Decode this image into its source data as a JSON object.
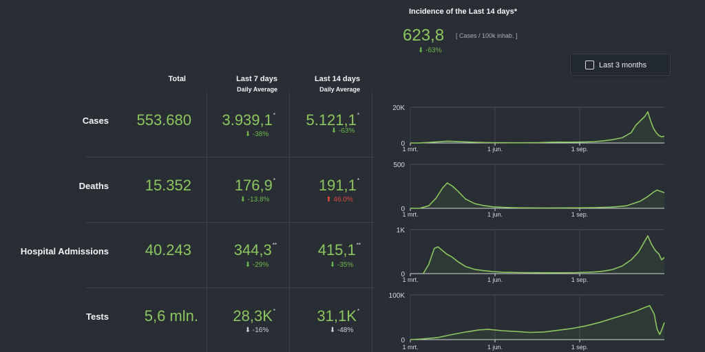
{
  "incidence": {
    "title": "Incidence of the Last 14 days*",
    "value": "623,8",
    "unit": "[ Cases / 100k inhab. ]",
    "change": "⬇ -63%"
  },
  "range_toggle": {
    "label": "Last 3 months",
    "checked": false
  },
  "columns": {
    "total": "Total",
    "last7": "Last 7 days",
    "last14": "Last 14 days",
    "daily_average": "Daily Average"
  },
  "rows": [
    {
      "label": "Cases",
      "total": "553.680",
      "avg7": "3.939,1",
      "avg7_mark": "*",
      "avg7_change": "⬇ -38%",
      "avg14": "5.121,1",
      "avg14_mark": "*",
      "avg14_change": "⬇ -63%"
    },
    {
      "label": "Deaths",
      "total": "15.352",
      "avg7": "176,9",
      "avg7_mark": "*",
      "avg7_change": "⬇ -13.8%",
      "avg14": "191,1",
      "avg14_mark": "*",
      "avg14_change": "⬆ 46.0%"
    },
    {
      "label": "Hospital Admissions",
      "total": "40.243",
      "avg7": "344,3",
      "avg7_mark": "**",
      "avg7_change": "⬇ -29%",
      "avg14": "415,1",
      "avg14_mark": "**",
      "avg14_change": "⬇ -35%"
    },
    {
      "label": "Tests",
      "total": "5,6 mln.",
      "avg7": "28,3K",
      "avg7_mark": "*",
      "avg7_change": "⬇ -16%",
      "avg14": "31,1K",
      "avg14_mark": "*",
      "avg14_change": "⬇ -48%"
    }
  ],
  "colors": {
    "accent": "#8dc65f",
    "down": "#6fb650",
    "up": "#e0473e",
    "neutral": "#cfd4d8",
    "background": "#282e34"
  },
  "chart_data": [
    {
      "type": "area",
      "name": "cases",
      "x_ticks": [
        "1 mrt.",
        "1 jun.",
        "1 sep."
      ],
      "y_ticks": [
        "20K",
        "0"
      ],
      "ylim": [
        0,
        24000
      ],
      "x_range_days": [
        0,
        276
      ],
      "points": [
        [
          0,
          0
        ],
        [
          10,
          60
        ],
        [
          20,
          350
        ],
        [
          30,
          800
        ],
        [
          40,
          1250
        ],
        [
          50,
          1000
        ],
        [
          60,
          750
        ],
        [
          70,
          500
        ],
        [
          80,
          300
        ],
        [
          90,
          220
        ],
        [
          100,
          180
        ],
        [
          110,
          150
        ],
        [
          120,
          130
        ],
        [
          130,
          170
        ],
        [
          140,
          280
        ],
        [
          150,
          520
        ],
        [
          160,
          600
        ],
        [
          170,
          560
        ],
        [
          180,
          600
        ],
        [
          190,
          750
        ],
        [
          200,
          900
        ],
        [
          210,
          1500
        ],
        [
          220,
          2300
        ],
        [
          230,
          3500
        ],
        [
          240,
          7000
        ],
        [
          245,
          12000
        ],
        [
          250,
          15000
        ],
        [
          255,
          18000
        ],
        [
          258,
          21000
        ],
        [
          261,
          15000
        ],
        [
          264,
          10000
        ],
        [
          267,
          7000
        ],
        [
          270,
          5000
        ],
        [
          273,
          4200
        ],
        [
          276,
          4500
        ]
      ]
    },
    {
      "type": "area",
      "name": "deaths",
      "x_ticks": [
        "1 mrt.",
        "1 jun.",
        "1 sep."
      ],
      "y_ticks": [
        "500",
        "0"
      ],
      "ylim": [
        0,
        520
      ],
      "x_range_days": [
        0,
        276
      ],
      "points": [
        [
          0,
          0
        ],
        [
          10,
          0
        ],
        [
          20,
          30
        ],
        [
          28,
          120
        ],
        [
          35,
          240
        ],
        [
          40,
          300
        ],
        [
          46,
          260
        ],
        [
          52,
          200
        ],
        [
          60,
          110
        ],
        [
          70,
          55
        ],
        [
          80,
          32
        ],
        [
          90,
          18
        ],
        [
          100,
          12
        ],
        [
          110,
          8
        ],
        [
          120,
          6
        ],
        [
          140,
          4
        ],
        [
          160,
          5
        ],
        [
          180,
          6
        ],
        [
          200,
          8
        ],
        [
          220,
          15
        ],
        [
          235,
          30
        ],
        [
          250,
          85
        ],
        [
          258,
          140
        ],
        [
          264,
          190
        ],
        [
          268,
          215
        ],
        [
          272,
          200
        ],
        [
          276,
          185
        ]
      ]
    },
    {
      "type": "area",
      "name": "hospital_admissions",
      "x_ticks": [
        "1 mrt.",
        "1 jun.",
        "1 sep."
      ],
      "y_ticks": [
        "1K",
        "0"
      ],
      "ylim": [
        0,
        1050
      ],
      "x_range_days": [
        14,
        276
      ],
      "points": [
        [
          14,
          0
        ],
        [
          20,
          220
        ],
        [
          26,
          600
        ],
        [
          30,
          640
        ],
        [
          35,
          550
        ],
        [
          40,
          460
        ],
        [
          45,
          400
        ],
        [
          52,
          280
        ],
        [
          60,
          170
        ],
        [
          70,
          100
        ],
        [
          80,
          70
        ],
        [
          90,
          50
        ],
        [
          100,
          35
        ],
        [
          120,
          25
        ],
        [
          140,
          22
        ],
        [
          160,
          20
        ],
        [
          180,
          25
        ],
        [
          200,
          40
        ],
        [
          210,
          60
        ],
        [
          220,
          100
        ],
        [
          230,
          180
        ],
        [
          240,
          330
        ],
        [
          248,
          520
        ],
        [
          254,
          750
        ],
        [
          258,
          900
        ],
        [
          262,
          700
        ],
        [
          266,
          560
        ],
        [
          270,
          470
        ],
        [
          273,
          330
        ],
        [
          276,
          390
        ]
      ]
    },
    {
      "type": "area",
      "name": "tests",
      "x_ticks": [
        "1 mrt.",
        "1 jun.",
        "1 sep."
      ],
      "y_ticks": [
        "100K",
        "0"
      ],
      "ylim": [
        0,
        105000
      ],
      "x_range_days": [
        0,
        276
      ],
      "points": [
        [
          0,
          0
        ],
        [
          15,
          2000
        ],
        [
          30,
          5000
        ],
        [
          45,
          12000
        ],
        [
          60,
          18000
        ],
        [
          75,
          23000
        ],
        [
          85,
          24000
        ],
        [
          100,
          21000
        ],
        [
          115,
          19000
        ],
        [
          130,
          17000
        ],
        [
          145,
          18000
        ],
        [
          160,
          22000
        ],
        [
          175,
          26000
        ],
        [
          190,
          32000
        ],
        [
          205,
          40000
        ],
        [
          220,
          50000
        ],
        [
          232,
          58000
        ],
        [
          244,
          66000
        ],
        [
          254,
          75000
        ],
        [
          260,
          80000
        ],
        [
          265,
          60000
        ],
        [
          268,
          25000
        ],
        [
          271,
          12000
        ],
        [
          274,
          28000
        ],
        [
          276,
          40000
        ]
      ]
    }
  ]
}
